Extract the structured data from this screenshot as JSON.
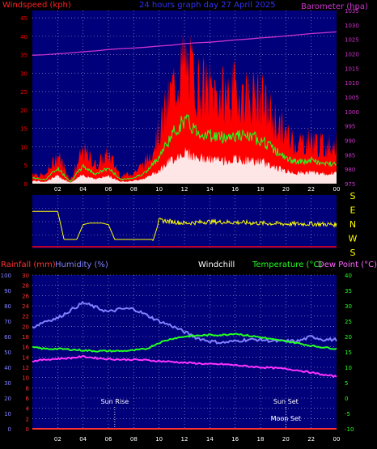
{
  "header": {
    "left_label": "Windspeed (kph)",
    "title": "24 hours graph day 27 April 2025",
    "right_label": "Barometer (hpa)"
  },
  "direction_letters": [
    "S",
    "E",
    "N",
    "W",
    "S"
  ],
  "lower_header": {
    "rainfall": "Rainfall (mm)",
    "humidity": "Humidity (%)",
    "windchill": "Windchill",
    "temperature": "Temperature (°C)",
    "dewpoint": "Dew Point (°C)"
  },
  "annotations": {
    "sunrise": "Sun Rise",
    "sunset": "Sun Set",
    "moonset": "Moon Set"
  },
  "colors": {
    "plot_bg": "#00007a",
    "wind_gust": "#ff0000",
    "wind_avg": "#22ff22",
    "wind_base": "#ffffff",
    "barometer": "#cc33cc",
    "direction": "#ffff00",
    "humidity": "#8080ff",
    "temperature": "#22ff22",
    "dewpoint": "#ff33ff",
    "rainfall": "#ff3333"
  },
  "chart_data": [
    {
      "type": "area",
      "x": [
        0,
        1,
        2,
        3,
        4,
        5,
        6,
        7,
        8,
        9,
        10,
        11,
        12,
        13,
        14,
        15,
        16,
        17,
        18,
        19,
        20,
        21,
        22,
        23,
        24
      ],
      "xticks": [
        "02",
        "04",
        "06",
        "08",
        "10",
        "12",
        "14",
        "16",
        "18",
        "20",
        "22",
        "00"
      ],
      "xtick_hours": [
        2,
        4,
        6,
        8,
        10,
        12,
        14,
        16,
        18,
        20,
        22,
        24
      ],
      "y_left_ticks": [
        0,
        5,
        10,
        15,
        20,
        25,
        30,
        35,
        40,
        45
      ],
      "y_left_lim": [
        0,
        47
      ],
      "y_right_ticks": [
        975,
        980,
        985,
        990,
        995,
        1000,
        1005,
        1010,
        1015,
        1020,
        1025,
        1030,
        1035
      ],
      "y_right_lim": [
        975,
        1035
      ],
      "series": [
        {
          "name": "Windspeed (kph)",
          "axis": "left",
          "values": [
            3,
            2,
            8,
            1,
            9,
            5,
            8,
            2,
            3,
            6,
            14,
            25,
            33,
            27,
            25,
            24,
            25,
            24,
            23,
            18,
            13,
            11,
            12,
            10,
            11
          ]
        },
        {
          "name": "Barometer (hpa)",
          "axis": "right",
          "values": [
            1019.5,
            1019.7,
            1020,
            1020.3,
            1020.7,
            1021,
            1021.5,
            1021.8,
            1022,
            1022.3,
            1022.7,
            1023,
            1023.5,
            1023.8,
            1024,
            1024.4,
            1024.8,
            1025.1,
            1025.5,
            1025.8,
            1026.2,
            1026.6,
            1027,
            1027.3,
            1027.6
          ]
        }
      ]
    },
    {
      "type": "line",
      "x": [
        0,
        0.5,
        1,
        1.5,
        2,
        2.5,
        3,
        3.5,
        4,
        4.5,
        5,
        5.5,
        6,
        6.5,
        7,
        7.5,
        8,
        8.5,
        9,
        9.5,
        10,
        12,
        14,
        16,
        18,
        20,
        22,
        24
      ],
      "xticks": [
        "02",
        "04",
        "06",
        "08",
        "10",
        "12",
        "14",
        "16",
        "18",
        "20",
        "22",
        "00"
      ],
      "y_lim": [
        0,
        360
      ],
      "series": [
        {
          "name": "Wind direction",
          "values": [
            250,
            250,
            250,
            250,
            250,
            60,
            60,
            60,
            160,
            170,
            170,
            170,
            160,
            60,
            60,
            60,
            60,
            60,
            60,
            60,
            190,
            170,
            180,
            175,
            170,
            165,
            165,
            160
          ]
        }
      ]
    },
    {
      "type": "line",
      "x": [
        0,
        1,
        2,
        3,
        4,
        5,
        6,
        7,
        8,
        9,
        10,
        11,
        12,
        13,
        14,
        15,
        16,
        17,
        18,
        19,
        20,
        21,
        22,
        23,
        24
      ],
      "xticks": [
        "02",
        "04",
        "06",
        "08",
        "10",
        "12",
        "14",
        "16",
        "18",
        "20",
        "22",
        "00"
      ],
      "y_left_ticks": [
        0,
        2,
        4,
        6,
        8,
        10,
        12,
        14,
        16,
        18,
        20,
        22,
        24,
        26,
        28,
        30
      ],
      "y_left_lim": [
        0,
        30
      ],
      "y_humidity_ticks": [
        0,
        10,
        20,
        30,
        40,
        50,
        60,
        70,
        80,
        90,
        100
      ],
      "y_humidity_lim": [
        0,
        100
      ],
      "y_right_ticks": [
        -10,
        -5,
        0,
        5,
        10,
        15,
        20,
        25,
        30,
        35,
        40
      ],
      "y_right_lim": [
        -10,
        40
      ],
      "series": [
        {
          "name": "Humidity (%)",
          "axis": "humidity",
          "values": [
            66,
            70,
            72,
            77,
            82,
            79,
            76,
            78,
            78,
            74,
            70,
            67,
            63,
            59,
            57,
            56,
            57,
            58,
            58,
            57,
            57,
            57,
            60,
            58,
            58
          ]
        },
        {
          "name": "Temperature (°C)",
          "axis": "right",
          "values": [
            16.5,
            16,
            16,
            15.8,
            15.5,
            15.3,
            15.3,
            15.3,
            15.5,
            16,
            18,
            19.3,
            20,
            20.3,
            20.5,
            20.5,
            21,
            20.3,
            19.8,
            19,
            18.5,
            17.8,
            17,
            16.5,
            16
          ]
        },
        {
          "name": "Dew Point (°C)",
          "axis": "right",
          "values": [
            12,
            12.5,
            12.8,
            13,
            13.5,
            13,
            12.7,
            12.5,
            12.5,
            12.3,
            12,
            11.8,
            11.5,
            11.3,
            11,
            11,
            10.7,
            10.3,
            10,
            9.8,
            9.5,
            9,
            8.3,
            7.5,
            7
          ]
        },
        {
          "name": "Rainfall (mm)",
          "axis": "left",
          "values": [
            0,
            0,
            0,
            0,
            0,
            0,
            0,
            0,
            0,
            0,
            0,
            0,
            0,
            0,
            0,
            0,
            0,
            0,
            0,
            0,
            0,
            0,
            0,
            0,
            0
          ]
        }
      ],
      "markers": [
        {
          "label_key": "sunrise",
          "hour": 6.5
        },
        {
          "label_key": "sunset",
          "hour": 20
        },
        {
          "label_key": "moonset",
          "hour": 20
        }
      ]
    }
  ]
}
